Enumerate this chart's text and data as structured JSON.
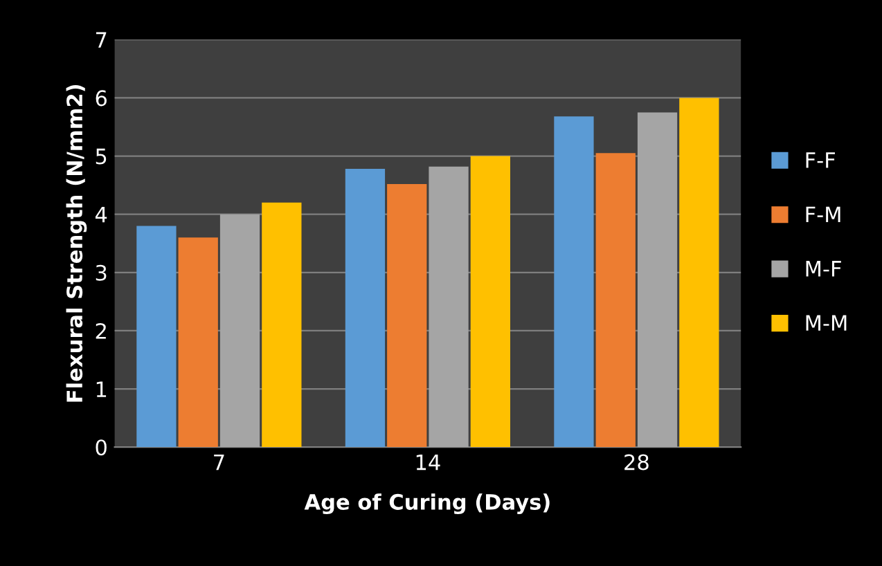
{
  "chart_data": {
    "type": "bar",
    "xlabel": "Age of Curing (Days)",
    "ylabel": "Flexural Strength (N/mm2)",
    "categories": [
      "7",
      "14",
      "28"
    ],
    "series": [
      {
        "name": "F-F",
        "color": "#5b9bd5",
        "values": [
          3.8,
          4.78,
          5.68
        ]
      },
      {
        "name": "F-M",
        "color": "#ed7d31",
        "values": [
          3.6,
          4.52,
          5.05
        ]
      },
      {
        "name": "M-F",
        "color": "#a5a5a5",
        "values": [
          4.0,
          4.82,
          5.75
        ]
      },
      {
        "name": "M-M",
        "color": "#ffc000",
        "values": [
          4.2,
          5.0,
          6.0
        ]
      }
    ],
    "ylim": [
      0,
      7
    ],
    "yticks": [
      0,
      1,
      2,
      3,
      4,
      5,
      6,
      7
    ],
    "grid": "y",
    "legend": "right"
  }
}
